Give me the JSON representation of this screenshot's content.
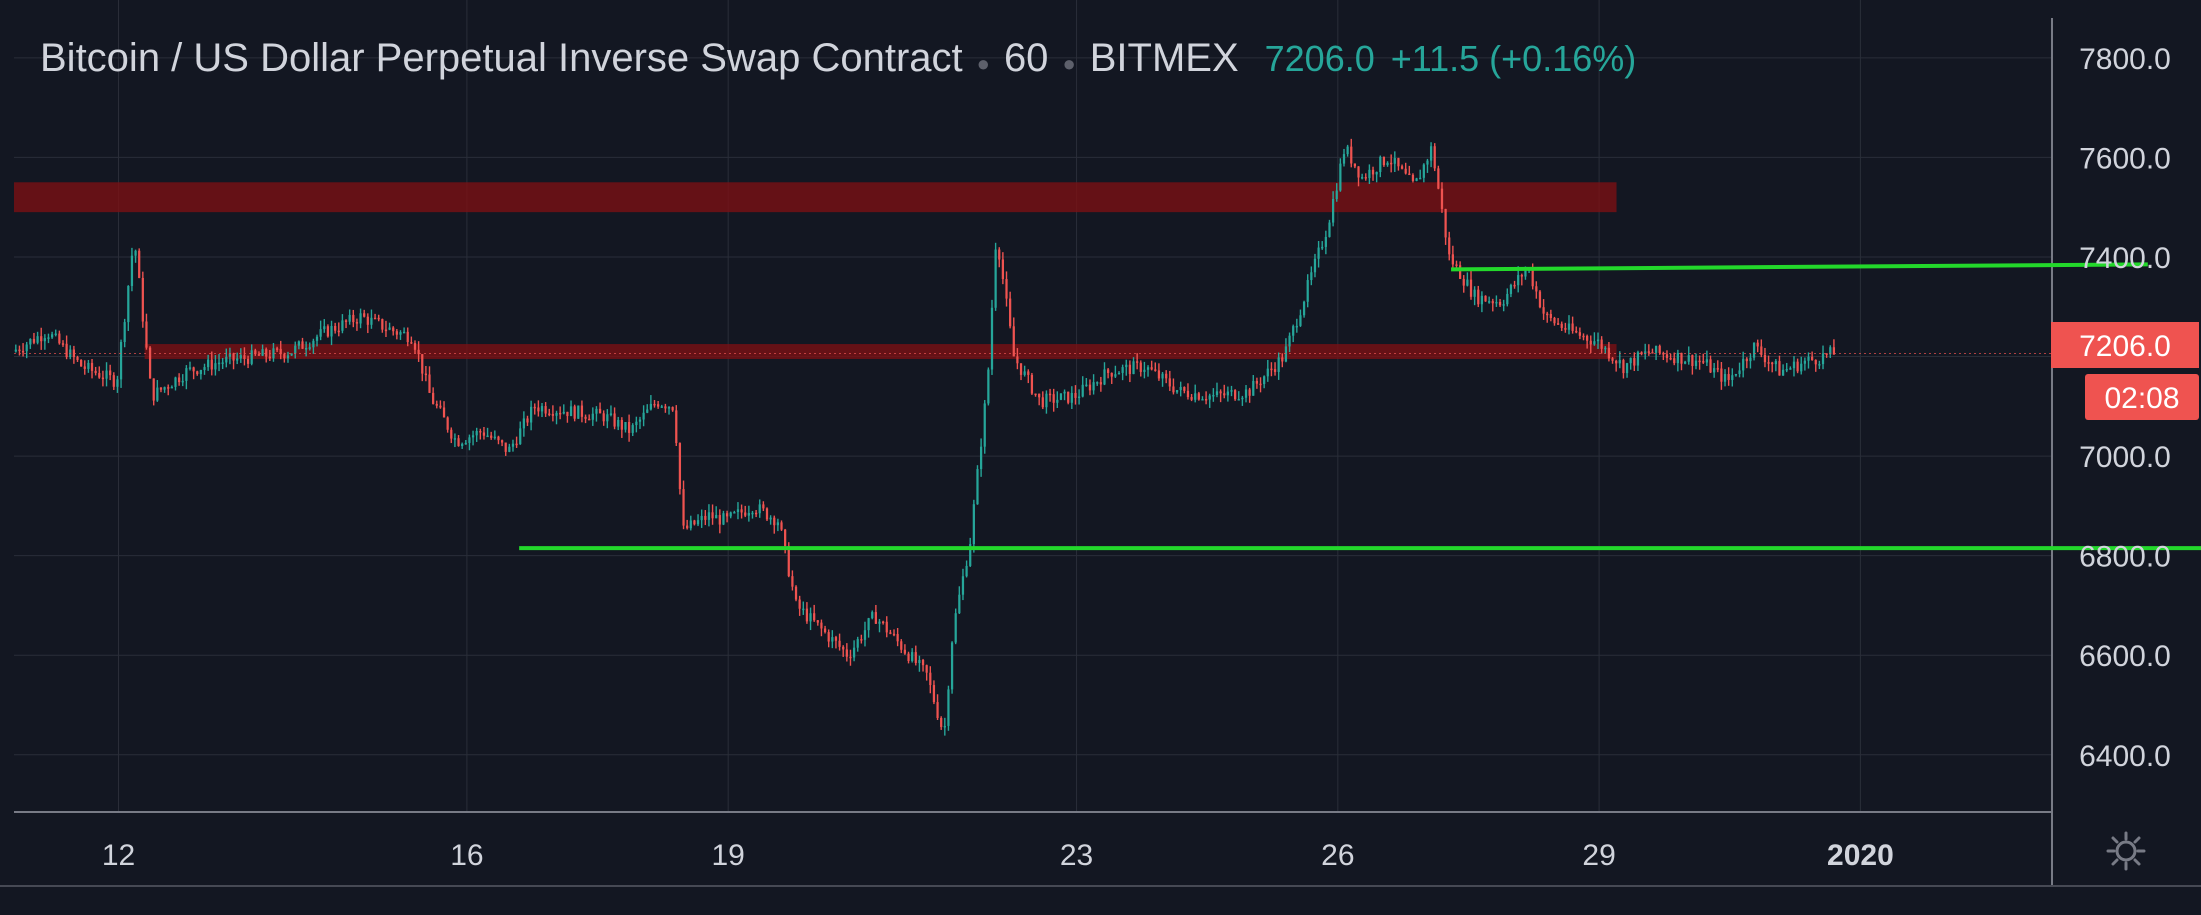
{
  "legend": {
    "symbol": "Bitcoin / US Dollar Perpetual Inverse Swap Contract",
    "interval": "60",
    "exchange": "BITMEX",
    "last": "7206.0",
    "change": "+11.5 (+0.16%)"
  },
  "price_label": "7206.0",
  "countdown": "02:08",
  "colors": {
    "background": "#131722",
    "grid": "#2a2e39",
    "up": "#26a69a",
    "down": "#ef5350",
    "zone": "#7a1014",
    "trendline": "#23d82b",
    "axis_text": "#d1d4dc"
  },
  "settings_icon": "gear-icon",
  "chart_data": {
    "type": "candlestick",
    "interval": "60",
    "x_ticks": [
      "12",
      "16",
      "19",
      "23",
      "26",
      "29",
      "2020"
    ],
    "x_tick_days": [
      12,
      16,
      19,
      23,
      26,
      29,
      32
    ],
    "x_range_days": [
      10.8,
      34.2
    ],
    "y_ticks": [
      7800,
      7600,
      7400,
      7200,
      7000,
      6800,
      6600,
      6400
    ],
    "y_range": [
      6285,
      7880
    ],
    "grid": true,
    "last_price": 7206.0,
    "price_path": [
      [
        10.8,
        7210
      ],
      [
        11.2,
        7250
      ],
      [
        11.6,
        7180
      ],
      [
        12.0,
        7150
      ],
      [
        12.2,
        7440
      ],
      [
        12.4,
        7120
      ],
      [
        12.8,
        7170
      ],
      [
        13.2,
        7190
      ],
      [
        13.6,
        7200
      ],
      [
        14.0,
        7210
      ],
      [
        14.4,
        7250
      ],
      [
        14.8,
        7280
      ],
      [
        15.2,
        7250
      ],
      [
        15.4,
        7240
      ],
      [
        15.6,
        7120
      ],
      [
        15.9,
        7030
      ],
      [
        16.2,
        7050
      ],
      [
        16.5,
        7010
      ],
      [
        16.8,
        7100
      ],
      [
        17.2,
        7090
      ],
      [
        17.6,
        7080
      ],
      [
        17.9,
        7050
      ],
      [
        18.2,
        7110
      ],
      [
        18.4,
        7100
      ],
      [
        18.5,
        6850
      ],
      [
        18.8,
        6880
      ],
      [
        19.0,
        6870
      ],
      [
        19.3,
        6900
      ],
      [
        19.6,
        6870
      ],
      [
        19.8,
        6700
      ],
      [
        20.1,
        6650
      ],
      [
        20.4,
        6600
      ],
      [
        20.7,
        6680
      ],
      [
        21.0,
        6620
      ],
      [
        21.3,
        6560
      ],
      [
        21.5,
        6440
      ],
      [
        21.6,
        6650
      ],
      [
        21.8,
        6830
      ],
      [
        22.0,
        7150
      ],
      [
        22.1,
        7450
      ],
      [
        22.3,
        7200
      ],
      [
        22.6,
        7110
      ],
      [
        23.0,
        7120
      ],
      [
        23.4,
        7170
      ],
      [
        23.8,
        7180
      ],
      [
        24.2,
        7130
      ],
      [
        24.6,
        7120
      ],
      [
        25.0,
        7130
      ],
      [
        25.4,
        7200
      ],
      [
        25.6,
        7300
      ],
      [
        25.9,
        7460
      ],
      [
        26.1,
        7620
      ],
      [
        26.3,
        7560
      ],
      [
        26.6,
        7600
      ],
      [
        26.9,
        7540
      ],
      [
        27.1,
        7620
      ],
      [
        27.3,
        7400
      ],
      [
        27.6,
        7320
      ],
      [
        27.9,
        7310
      ],
      [
        28.2,
        7380
      ],
      [
        28.4,
        7280
      ],
      [
        28.7,
        7250
      ],
      [
        29.0,
        7230
      ],
      [
        29.3,
        7180
      ],
      [
        29.6,
        7210
      ],
      [
        29.9,
        7200
      ],
      [
        30.2,
        7190
      ],
      [
        30.5,
        7150
      ],
      [
        30.8,
        7220
      ],
      [
        31.1,
        7170
      ],
      [
        31.4,
        7190
      ],
      [
        31.7,
        7206
      ]
    ],
    "zones": [
      {
        "from_day": 10.8,
        "to_day": 29.2,
        "low": 7490,
        "high": 7550
      },
      {
        "from_day": 12.3,
        "to_day": 29.2,
        "low": 7195,
        "high": 7225
      }
    ],
    "trendlines": [
      {
        "from_day": 27.3,
        "to_day": 35.3,
        "from_price": 7375,
        "to_price": 7385
      },
      {
        "from_day": 16.6,
        "to_day": 37.7,
        "from_price": 6815,
        "to_price": 6815
      }
    ]
  }
}
